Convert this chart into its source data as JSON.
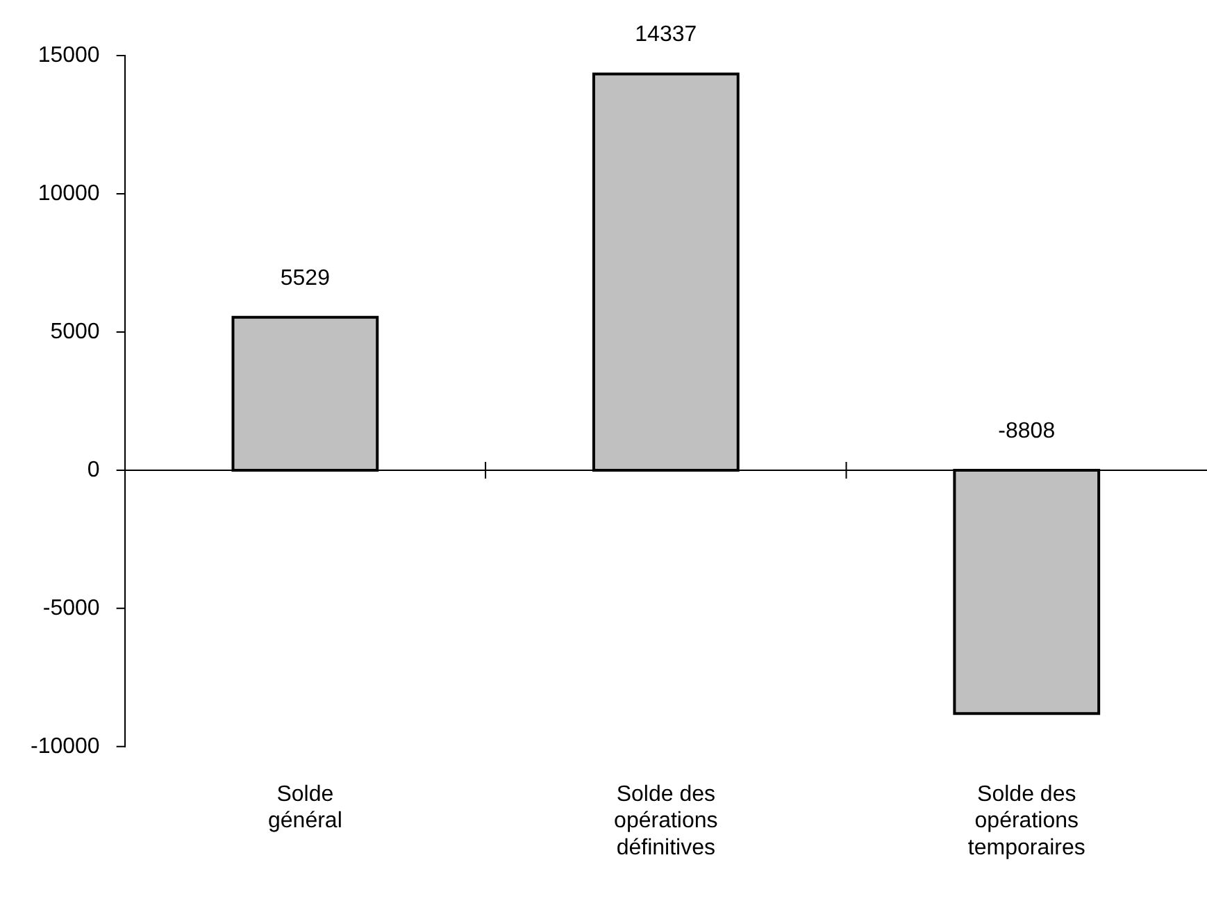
{
  "chart_data": {
    "type": "bar",
    "categories": [
      "Solde général",
      "Solde des opérations définitives",
      "Solde des opérations temporaires"
    ],
    "values": [
      5529,
      14337,
      -8808
    ],
    "color": "#c0c0c0",
    "ylim": [
      -10000,
      15000
    ],
    "yticks": [
      -10000,
      -5000,
      0,
      5000,
      10000,
      15000
    ],
    "legend": false,
    "data_labels": true
  }
}
